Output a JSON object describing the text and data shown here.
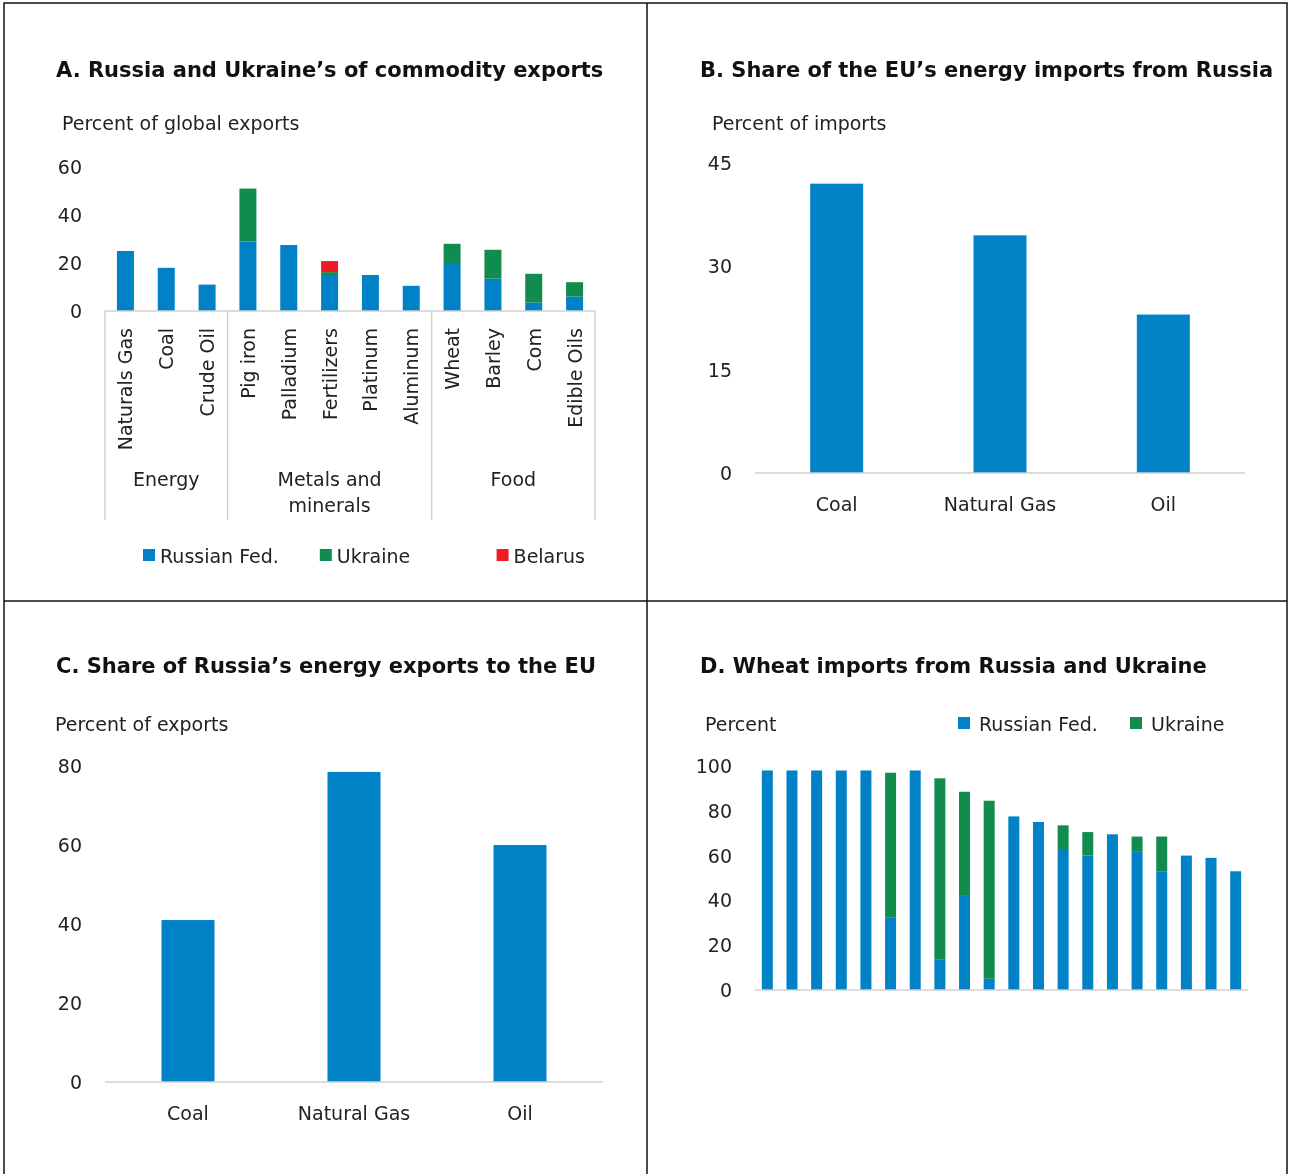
{
  "chart_data": [
    {
      "type": "bar",
      "title": "A. Russia and Ukraine’s of commodity exports",
      "ylabel": "Percent of global exports",
      "stacked": true,
      "categories": [
        "Naturals Gas",
        "Coal",
        "Crude Oil",
        "Pig iron",
        "Palladium",
        "Fertilizers",
        "Platinum",
        "Aluminum",
        "Wheat",
        "Barley",
        "Com",
        "Edible Oils"
      ],
      "series": [
        {
          "name": "Russian Fed.",
          "color": "#0282c6",
          "values": [
            25,
            18,
            11,
            29,
            27.5,
            15,
            15,
            10.5,
            20,
            13.5,
            3.5,
            6
          ]
        },
        {
          "name": "Ukraine",
          "color": "#118c4f",
          "values": [
            null,
            null,
            null,
            22,
            null,
            1.2,
            null,
            null,
            8,
            12,
            12,
            6
          ]
        },
        {
          "name": "Belarus",
          "color": "#ed1c24",
          "values": [
            null,
            null,
            null,
            null,
            null,
            4.6,
            null,
            null,
            null,
            null,
            null,
            null
          ]
        }
      ],
      "ylim": [
        0,
        60
      ],
      "yticks": [
        0,
        20,
        40,
        60
      ],
      "grid": false,
      "legend": "bottom",
      "annotations": [
        "Energy",
        "Metals and minerals",
        "Food"
      ]
    },
    {
      "type": "bar",
      "title": "B. Share of the EU’s energy imports from Russia",
      "ylabel": "Percent of imports",
      "categories": [
        "Coal",
        "Natural Gas",
        "Oil"
      ],
      "values": [
        42,
        34.5,
        23
      ],
      "color": "#0282c6",
      "ylim": [
        0,
        45
      ],
      "yticks": [
        0,
        15,
        30,
        45
      ],
      "grid": false,
      "legend": false
    },
    {
      "type": "bar",
      "title": "C. Share of Russia’s energy exports to the EU",
      "ylabel": "Percent of exports",
      "categories": [
        "Coal",
        "Natural Gas",
        "Oil"
      ],
      "values": [
        41,
        78.5,
        60
      ],
      "color": "#0282c6",
      "ylim": [
        0,
        80
      ],
      "yticks": [
        0,
        20,
        40,
        60,
        80
      ],
      "grid": false,
      "legend": false
    },
    {
      "type": "bar",
      "title": "D. Wheat imports from Russia and Ukraine",
      "ylabel": "Percent",
      "stacked": true,
      "categories": [
        null,
        null,
        null,
        null,
        null,
        null,
        null,
        null,
        null,
        null,
        null,
        null,
        null,
        null,
        null,
        null,
        null,
        null,
        null,
        null
      ],
      "series": [
        {
          "name": "Russian Fed.",
          "color": "#0282c6",
          "values": [
            98,
            98,
            98,
            98,
            98,
            32.5,
            98,
            13.5,
            42,
            5,
            77.5,
            75,
            62.5,
            60,
            69.5,
            62,
            53,
            60,
            59,
            53
          ]
        },
        {
          "name": "Ukraine",
          "color": "#118c4f",
          "values": [
            null,
            null,
            null,
            null,
            null,
            64.5,
            null,
            81,
            46.5,
            79.5,
            null,
            null,
            11,
            10.5,
            null,
            6.5,
            15.5,
            null,
            null,
            null
          ]
        }
      ],
      "ylim": [
        0,
        100
      ],
      "yticks": [
        0,
        20,
        40,
        60,
        80,
        100
      ],
      "grid": false,
      "legend": "top right"
    }
  ]
}
